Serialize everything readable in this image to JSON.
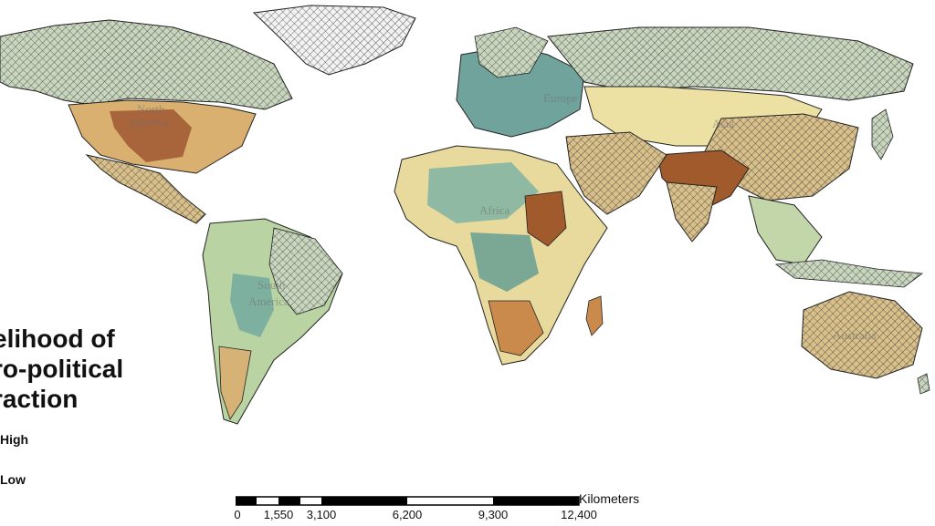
{
  "legend": {
    "title_lines": [
      "elihood of",
      "ro-political",
      "raction"
    ],
    "high": "High",
    "low": "Low"
  },
  "scalebar": {
    "units": "Kilometers",
    "ticks": [
      "0",
      "1,550",
      "3,100",
      "6,200",
      "9,300",
      "12,400"
    ]
  },
  "continent_labels": {
    "north_america": [
      "North",
      "America"
    ],
    "south_america": [
      "South",
      "America"
    ],
    "africa": "Africa",
    "asia": "Asia",
    "europe": "Europe",
    "australia": "Australia"
  },
  "colors": {
    "high": "#a05a2c",
    "mid_high": "#d9a066",
    "mid": "#efe3a6",
    "mid_low": "#a9cfa8",
    "low": "#4d8f91",
    "hatch": "#333333"
  }
}
